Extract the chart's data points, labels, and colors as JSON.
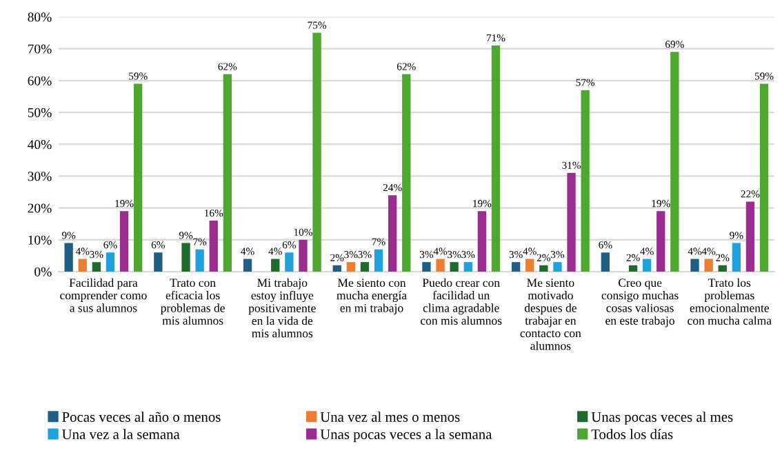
{
  "chart_data": {
    "type": "bar",
    "categories": [
      "Facilidad para comprender como a sus alumnos",
      "Trato con eficacia los problemas de mis alumnos",
      "Mi trabajo estoy influye positivamente en la vida de mis alumnos",
      "Me siento con mucha energía en mi trabajo",
      "Puedo crear con facilidad un clima agradable con mis alumnos",
      "Me siento motivado despues de trabajar en contacto con alumnos",
      "Creo que consigo muchas cosas valiosas en este trabajo",
      "Trato los problemas emocionalmente con mucha calma"
    ],
    "series": [
      {
        "name": "Pocas veces al año o menos",
        "color": "#1f5f85",
        "values": [
          9,
          6,
          4,
          2,
          3,
          3,
          6,
          4
        ],
        "value_labels": [
          "9%",
          "6%",
          "4%",
          "2%",
          "3%",
          "3%",
          "6%",
          "4%"
        ]
      },
      {
        "name": "Una vez al mes o menos",
        "color": "#ed7d31",
        "values": [
          4,
          null,
          null,
          3,
          4,
          4,
          null,
          4
        ],
        "value_labels": [
          "4%",
          null,
          null,
          "3%",
          "4%",
          "4%",
          null,
          "4%"
        ]
      },
      {
        "name": "Unas pocas veces al mes",
        "color": "#1e6b2e",
        "values": [
          3,
          9,
          4,
          3,
          3,
          2,
          2,
          2
        ],
        "value_labels": [
          "3%",
          "9%",
          "4%",
          "3%",
          "3%",
          "2%",
          "2%",
          "2%"
        ]
      },
      {
        "name": "Una vez a la semana",
        "color": "#1ea1dc",
        "values": [
          6,
          7,
          6,
          7,
          3,
          3,
          4,
          9
        ],
        "value_labels": [
          "6%",
          "7%",
          "6%",
          "7%",
          "3%",
          "3%",
          "4%",
          "9%"
        ]
      },
      {
        "name": "Unas pocas veces a la semana",
        "color": "#9b2d91",
        "values": [
          19,
          16,
          10,
          24,
          19,
          31,
          19,
          22
        ],
        "value_labels": [
          "19%",
          "16%",
          "10%",
          "24%",
          "19%",
          "31%",
          "19%",
          "22%"
        ]
      },
      {
        "name": "Todos los días",
        "color": "#4ea72e",
        "values": [
          59,
          62,
          75,
          62,
          71,
          57,
          69,
          59
        ],
        "value_labels": [
          "59%",
          "62%",
          "75%",
          "62%",
          "71%",
          "57%",
          "69%",
          "59%"
        ]
      }
    ],
    "ylim": [
      0,
      80
    ],
    "yticks": [
      {
        "value": 0,
        "label": "0%"
      },
      {
        "value": 10,
        "label": "10%"
      },
      {
        "value": 20,
        "label": "20%"
      },
      {
        "value": 30,
        "label": "30%"
      },
      {
        "value": 40,
        "label": "40%"
      },
      {
        "value": 50,
        "label": "50%"
      },
      {
        "value": 60,
        "label": "60%"
      },
      {
        "value": 70,
        "label": "70%"
      },
      {
        "value": 80,
        "label": "80%"
      }
    ],
    "grid": "y",
    "legend": "bottom"
  }
}
